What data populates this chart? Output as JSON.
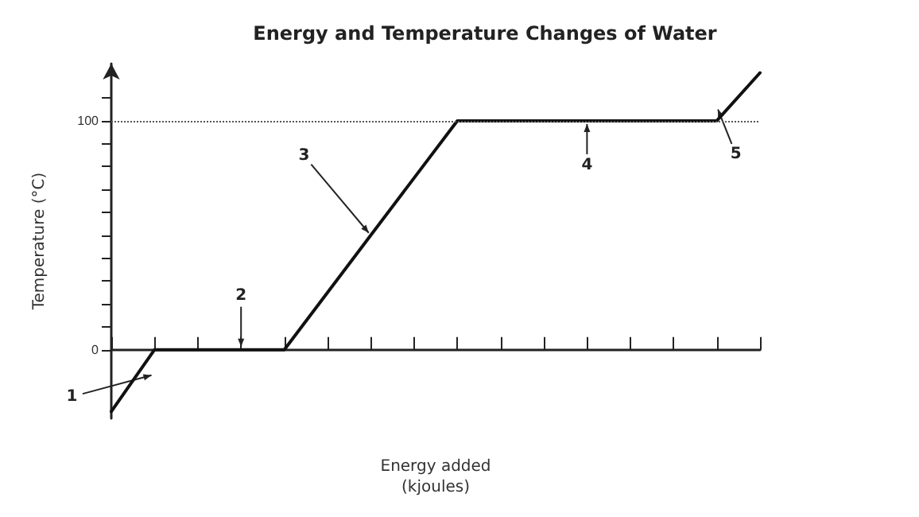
{
  "chart_data": {
    "type": "line",
    "title": "Energy and Temperature Changes of Water",
    "xlabel": "Energy added\n(kjoules)",
    "ylabel": "Temperature (°C)",
    "categories": [
      null,
      null,
      null,
      null,
      null,
      null,
      null,
      null,
      null,
      null,
      null,
      null,
      null,
      null,
      null,
      null
    ],
    "series": [
      {
        "color": "#111111",
        "values": [
          -27,
          0,
          0,
          0,
          0,
          25,
          50,
          75,
          100,
          100,
          100,
          100,
          100,
          100,
          100,
          121
        ]
      }
    ],
    "ylim": [
      -30,
      125
    ],
    "yticks": [
      0,
      {
        "value": 10,
        "label": null
      },
      {
        "value": 20,
        "label": null
      },
      {
        "value": 30,
        "label": null
      },
      {
        "value": 40,
        "label": null
      },
      {
        "value": 50,
        "label": null
      },
      {
        "value": 60,
        "label": null
      },
      {
        "value": 70,
        "label": null
      },
      {
        "value": 80,
        "label": null
      },
      {
        "value": 90,
        "label": null
      },
      100,
      {
        "value": 110,
        "label": null
      }
    ],
    "tick_labels": "y",
    "grid": false,
    "marker": "none",
    "line_style": "solid",
    "ref_lines": [
      {
        "axis": "y",
        "value": 100,
        "line_style": "dotted",
        "color": "#555555"
      }
    ],
    "annotations": [
      "1",
      "2",
      "3",
      "4",
      "5"
    ]
  }
}
